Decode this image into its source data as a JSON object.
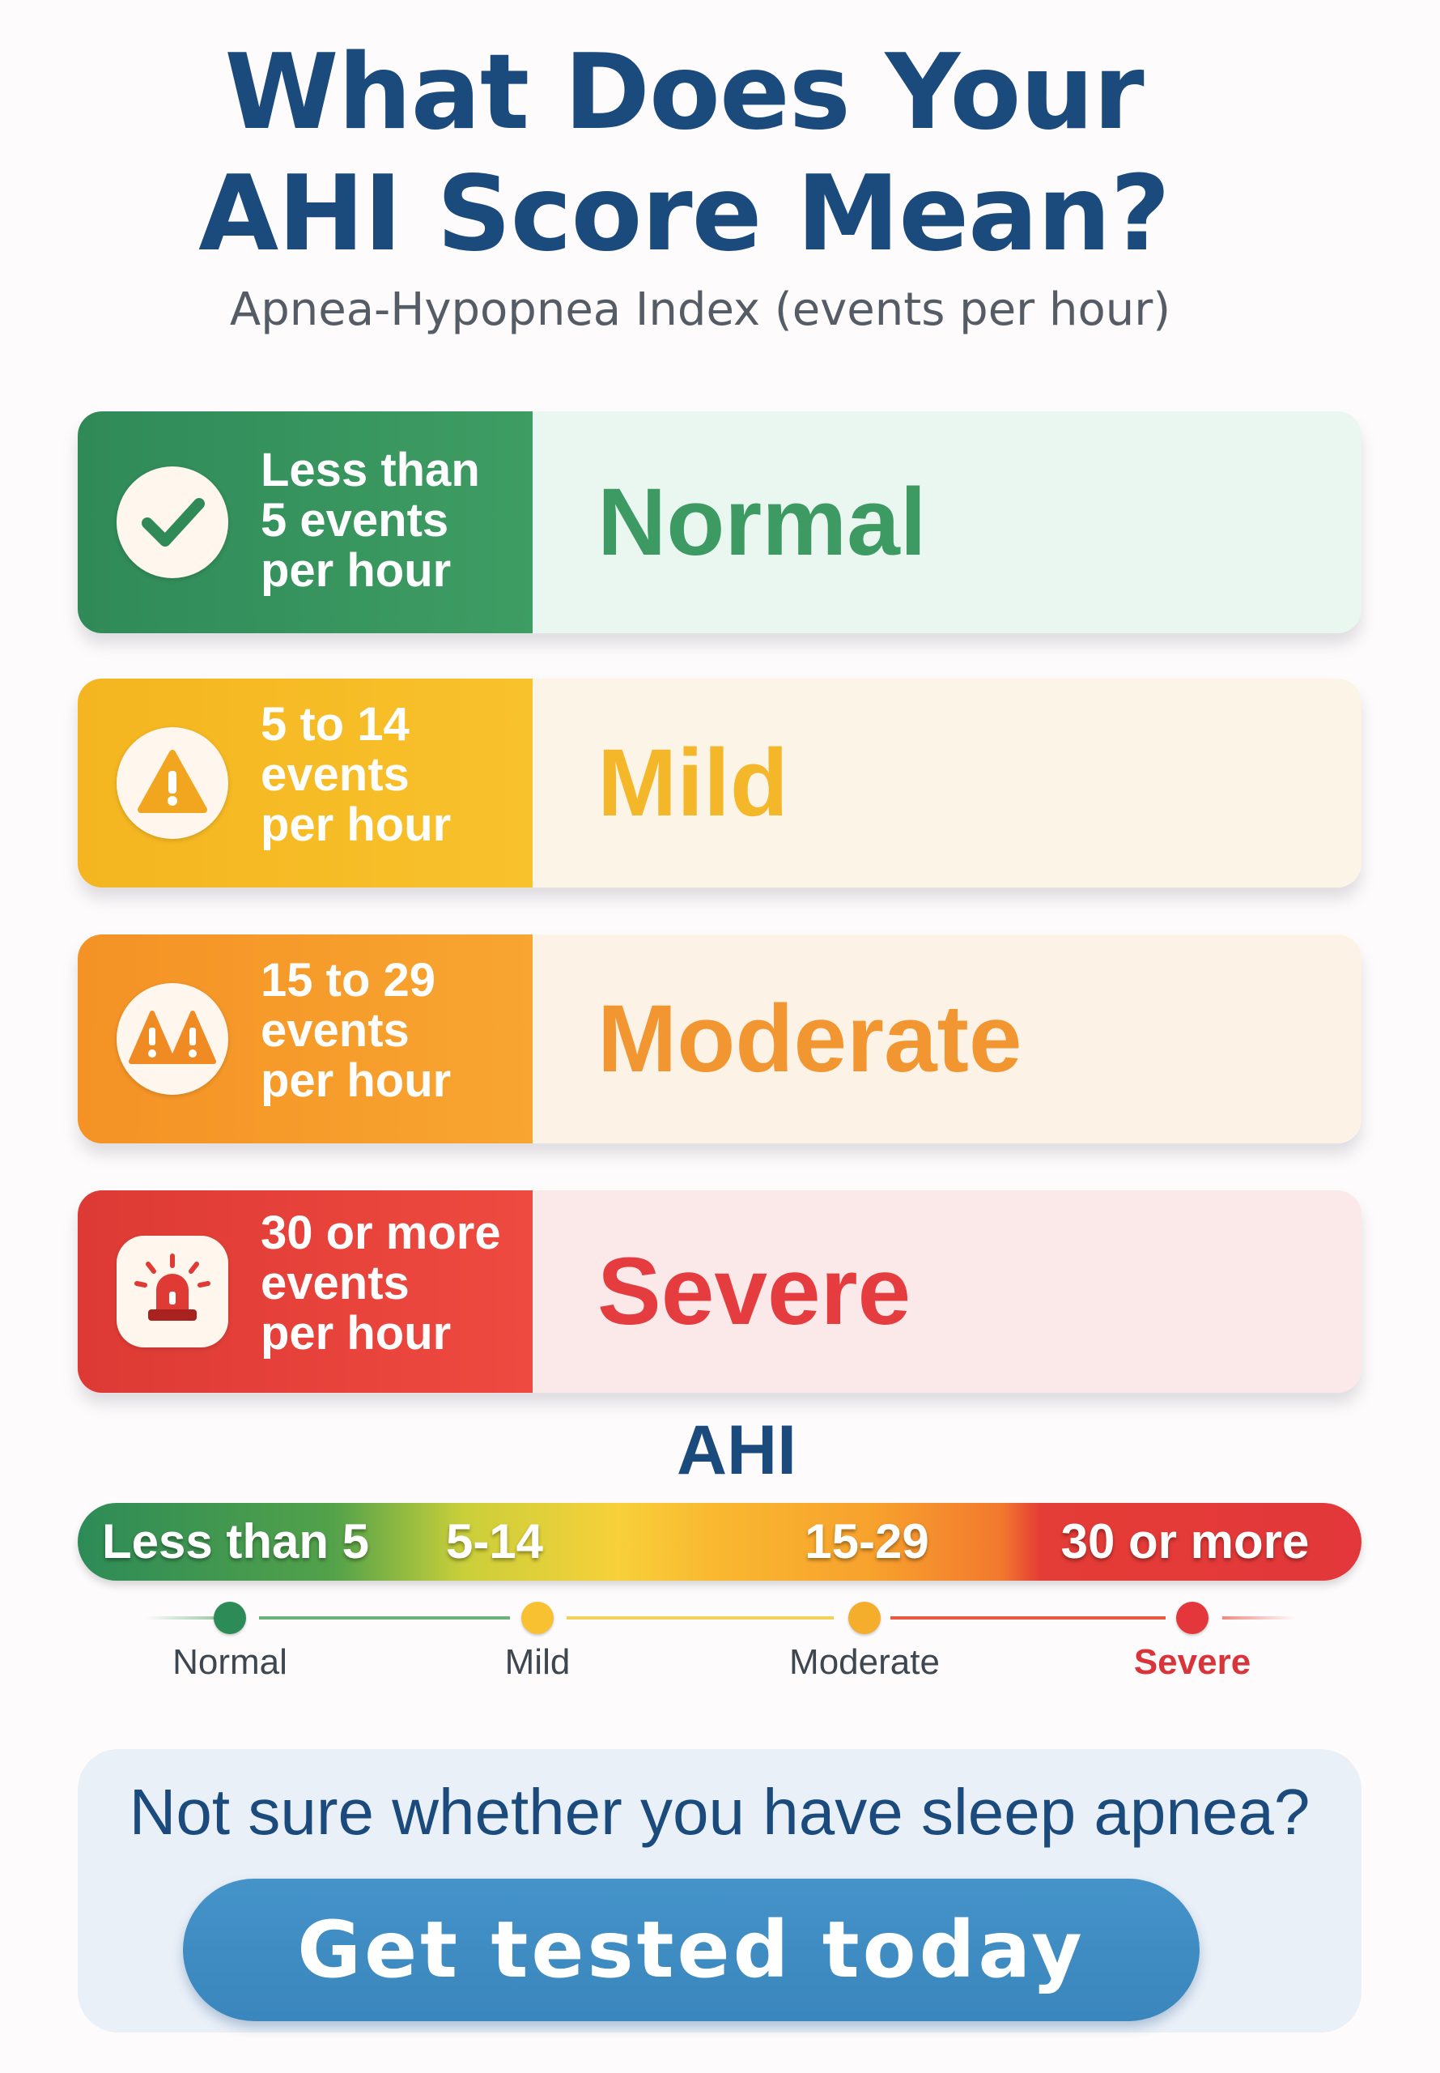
{
  "header": {
    "title_line1": "What Does Your",
    "title_line2": "AHI Score Mean?",
    "subtitle": "Apnea-Hypopnea Index (events per hour)"
  },
  "categories": [
    {
      "range_line1": "Less than",
      "range_line2": "5 events",
      "range_line3": "per hour",
      "level": "Normal",
      "icon": "check-icon",
      "color": "#3d9a62"
    },
    {
      "range_line1": "5 to 14",
      "range_line2": "events",
      "range_line3": "per hour",
      "level": "Mild",
      "icon": "warning-icon",
      "color": "#f5b72a"
    },
    {
      "range_line1": "15 to 29",
      "range_line2": "events",
      "range_line3": "per hour",
      "level": "Moderate",
      "icon": "double-warning-icon",
      "color": "#f29632"
    },
    {
      "range_line1": "30 or more",
      "range_line2": "events",
      "range_line3": "per hour",
      "level": "Severe",
      "icon": "alarm-siren-icon",
      "color": "#e53d3f"
    }
  ],
  "scale": {
    "label": "AHI",
    "segments": [
      "Less than 5",
      "5-14",
      "15-29",
      "30 or more"
    ],
    "ticks": [
      "Normal",
      "Mild",
      "Moderate",
      "Severe"
    ],
    "tick_colors": [
      "#2d8b57",
      "#f5b72a",
      "#f2a62e",
      "#e3373b"
    ]
  },
  "cta": {
    "question": "Not sure whether you have sleep apnea?",
    "button_label": "Get tested today"
  }
}
